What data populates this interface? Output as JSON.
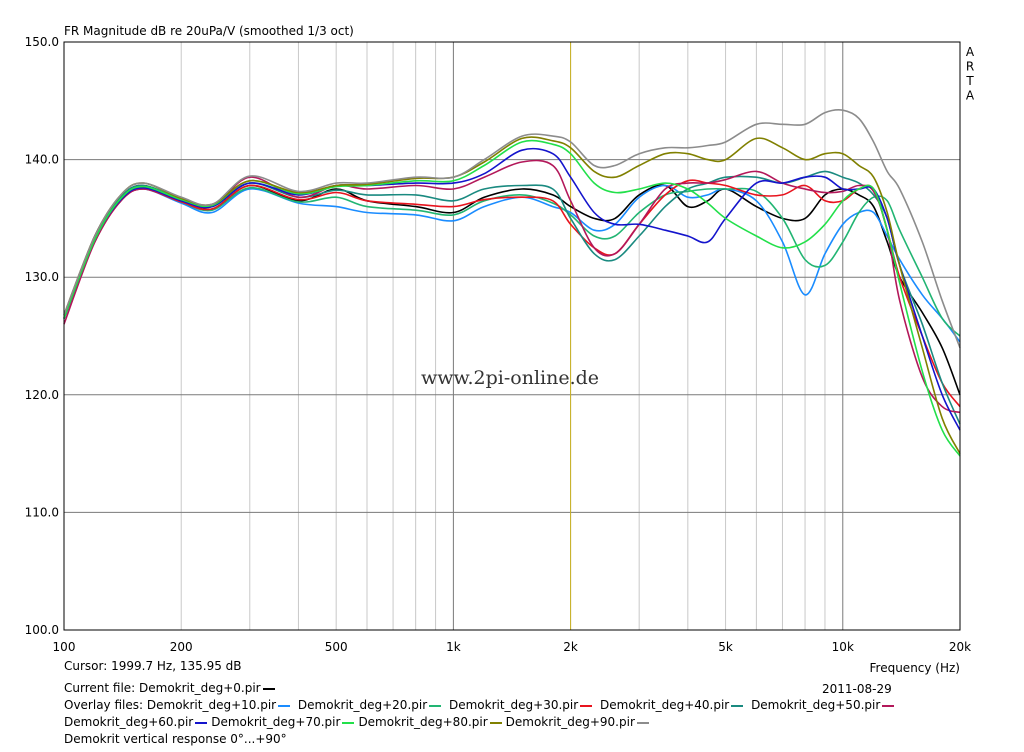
{
  "chart_data": {
    "type": "line",
    "title": "FR Magnitude dB re 20uPa/V (smoothed 1/3 oct)",
    "xlabel": "Frequency (Hz)",
    "ylabel": "",
    "xscale": "log",
    "xlim": [
      100,
      20000
    ],
    "ylim": [
      100,
      150
    ],
    "grid": true,
    "x_tick_labels": [
      {
        "value": 100,
        "label": "100"
      },
      {
        "value": 200,
        "label": "200"
      },
      {
        "value": 500,
        "label": "500"
      },
      {
        "value": 1000,
        "label": "1k"
      },
      {
        "value": 2000,
        "label": "2k"
      },
      {
        "value": 5000,
        "label": "5k"
      },
      {
        "value": 10000,
        "label": "10k"
      },
      {
        "value": 20000,
        "label": "20k"
      }
    ],
    "y_ticks": [
      {
        "value": 100,
        "label": "100.0"
      },
      {
        "value": 110,
        "label": "110.0"
      },
      {
        "value": 120,
        "label": "120.0"
      },
      {
        "value": 130,
        "label": "130.0"
      },
      {
        "value": 140,
        "label": "140.0"
      },
      {
        "value": 150,
        "label": "150.0"
      }
    ],
    "cursor_x": 1999.7,
    "watermark": "www.2pi-online.de",
    "side_label": [
      "A",
      "R",
      "T",
      "A"
    ],
    "x": [
      100,
      120,
      140,
      160,
      200,
      240,
      300,
      400,
      500,
      600,
      800,
      1000,
      1200,
      1500,
      1800,
      2000,
      2300,
      2600,
      3000,
      3500,
      4000,
      4500,
      5000,
      6000,
      7000,
      8000,
      9000,
      10000,
      11000,
      12000,
      13000,
      14000,
      16000,
      18000,
      20000
    ],
    "series": [
      {
        "name": "Demokrit_deg+0.pir",
        "color": "#000000",
        "values": [
          126.5,
          133.5,
          136.8,
          137.8,
          136.5,
          135.8,
          137.8,
          136.5,
          137.5,
          136.5,
          136.0,
          135.5,
          136.8,
          137.5,
          137.0,
          136.0,
          135.0,
          135.0,
          137.0,
          137.8,
          136.0,
          136.5,
          137.5,
          136.0,
          135.0,
          135.0,
          137.0,
          137.5,
          137.0,
          136.0,
          133.0,
          130.0,
          127.0,
          124.0,
          120.0
        ]
      },
      {
        "name": "Demokrit_deg+10.pir",
        "color": "#1a8cff",
        "values": [
          126.5,
          133.0,
          136.5,
          137.5,
          136.3,
          135.5,
          137.5,
          136.3,
          136.0,
          135.5,
          135.3,
          134.8,
          136.0,
          136.8,
          136.0,
          135.5,
          134.0,
          134.5,
          136.8,
          137.8,
          136.8,
          137.0,
          137.5,
          136.5,
          133.0,
          128.5,
          132.0,
          134.5,
          135.5,
          135.5,
          133.5,
          131.5,
          128.5,
          126.5,
          124.5
        ]
      },
      {
        "name": "Demokrit_deg+20.pir",
        "color": "#22b573",
        "values": [
          126.5,
          133.3,
          136.8,
          137.7,
          136.4,
          135.7,
          137.6,
          136.4,
          136.8,
          136.0,
          135.7,
          135.3,
          136.5,
          137.0,
          136.3,
          135.3,
          133.5,
          133.5,
          135.5,
          137.0,
          137.3,
          137.5,
          137.5,
          137.3,
          135.0,
          131.5,
          131.0,
          133.0,
          135.5,
          136.8,
          136.5,
          134.0,
          130.0,
          126.5,
          125.0
        ]
      },
      {
        "name": "Demokrit_deg+30.pir",
        "color": "#e8141e",
        "values": [
          126.5,
          133.0,
          136.5,
          137.5,
          136.4,
          135.8,
          137.8,
          136.6,
          137.2,
          136.5,
          136.2,
          136.0,
          136.6,
          136.8,
          136.5,
          134.5,
          132.5,
          132.0,
          134.5,
          137.0,
          138.2,
          138.0,
          137.8,
          137.0,
          137.0,
          137.8,
          136.5,
          136.5,
          137.5,
          137.5,
          134.0,
          130.0,
          125.0,
          121.0,
          119.0
        ]
      },
      {
        "name": "Demokrit_deg+40.pir",
        "color": "#1a8a80",
        "values": [
          126.5,
          133.2,
          136.8,
          137.8,
          136.6,
          136.0,
          138.0,
          136.8,
          137.4,
          137.0,
          137.0,
          136.5,
          137.5,
          137.8,
          137.5,
          135.0,
          132.0,
          131.5,
          133.5,
          136.0,
          137.5,
          138.0,
          138.5,
          138.5,
          138.0,
          138.5,
          139.0,
          138.5,
          138.0,
          137.0,
          135.0,
          131.0,
          126.0,
          121.0,
          117.5
        ]
      },
      {
        "name": "Demokrit_deg+50.pir",
        "color": "#b3185a",
        "values": [
          126.0,
          133.0,
          136.5,
          137.5,
          136.5,
          136.0,
          138.5,
          136.8,
          137.8,
          137.5,
          137.8,
          137.5,
          138.5,
          139.8,
          139.5,
          136.5,
          132.5,
          132.0,
          134.5,
          137.5,
          138.0,
          138.0,
          138.3,
          139.0,
          138.0,
          137.5,
          137.2,
          137.3,
          137.8,
          137.3,
          134.0,
          128.0,
          121.5,
          119.0,
          118.5
        ]
      },
      {
        "name": "Demokrit_deg+60.pir",
        "color": "#1414cc",
        "values": [
          126.5,
          133.2,
          136.6,
          137.6,
          136.5,
          136.0,
          138.0,
          137.0,
          137.8,
          137.8,
          138.0,
          138.0,
          138.8,
          140.8,
          140.5,
          138.5,
          135.5,
          134.5,
          134.5,
          134.0,
          133.5,
          133.0,
          135.0,
          138.0,
          138.0,
          138.5,
          138.5,
          137.5,
          137.5,
          137.5,
          135.0,
          131.0,
          125.0,
          120.0,
          117.0
        ]
      },
      {
        "name": "Demokrit_deg+70.pir",
        "color": "#22e04a",
        "values": [
          126.5,
          133.2,
          136.7,
          137.7,
          136.6,
          136.1,
          138.2,
          137.1,
          137.7,
          137.8,
          138.2,
          138.2,
          139.5,
          141.5,
          141.3,
          140.5,
          138.0,
          137.2,
          137.5,
          138.0,
          137.5,
          136.3,
          135.0,
          133.5,
          132.5,
          133.0,
          134.5,
          136.5,
          137.5,
          137.5,
          134.0,
          129.5,
          122.0,
          117.0,
          114.8
        ]
      },
      {
        "name": "Demokrit_deg+80.pir",
        "color": "#808000",
        "values": [
          126.8,
          133.5,
          137.0,
          138.0,
          136.7,
          136.2,
          138.2,
          137.2,
          137.8,
          137.9,
          138.4,
          138.5,
          139.8,
          141.8,
          141.6,
          141.0,
          139.0,
          138.5,
          139.5,
          140.5,
          140.5,
          140.0,
          140.0,
          141.8,
          141.0,
          140.0,
          140.5,
          140.5,
          139.5,
          138.5,
          135.5,
          131.0,
          124.0,
          118.0,
          115.0
        ]
      },
      {
        "name": "Demokrit_deg+90.pir",
        "color": "#8c8c8c",
        "values": [
          126.8,
          133.5,
          137.0,
          138.0,
          136.8,
          136.2,
          138.6,
          137.3,
          138.0,
          138.0,
          138.5,
          138.5,
          140.0,
          142.0,
          142.0,
          141.5,
          139.5,
          139.5,
          140.5,
          141.0,
          141.0,
          141.2,
          141.5,
          143.0,
          143.0,
          143.0,
          144.0,
          144.2,
          143.5,
          141.5,
          139.0,
          137.5,
          133.0,
          128.0,
          124.0
        ]
      }
    ]
  },
  "info": {
    "cursor_label": "Cursor: 1999.7 Hz, 135.95 dB",
    "current_file_label": "Current file: Demokrit_deg+0.pir",
    "overlay_prefix": "Overlay files:",
    "caption": "Demokrit vertical response 0°...+90°",
    "date": "2011-08-29"
  }
}
